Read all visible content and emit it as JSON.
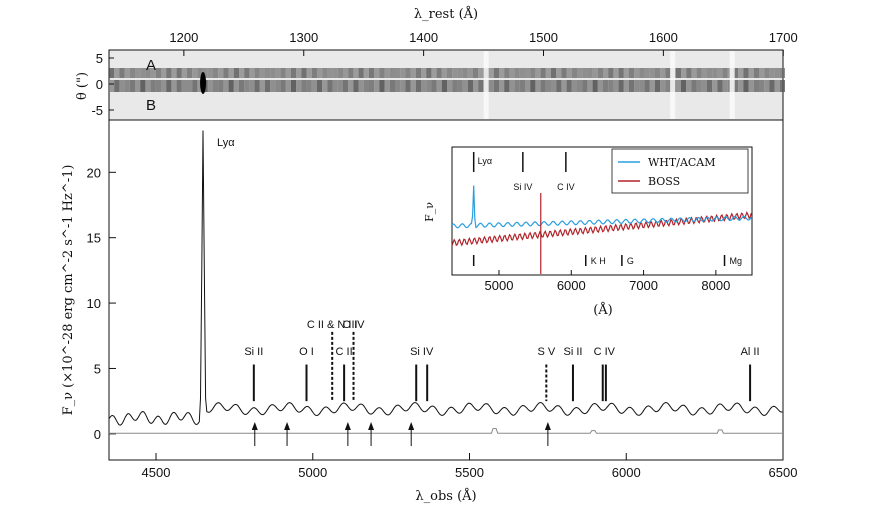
{
  "chart_data": {
    "type": "line",
    "top_axis": {
      "label": "λ_rest (Å)",
      "ticks": [
        1200,
        1300,
        1400,
        1500,
        1600,
        1700
      ],
      "range": [
        1150,
        1700
      ]
    },
    "spectrum2d": {
      "ylabel": "θ (\")",
      "yticks": [
        5,
        0,
        -5
      ],
      "ytick_labels": [
        "5",
        "0",
        "-5"
      ],
      "trace_labels": [
        "A",
        "B"
      ]
    },
    "main": {
      "xlabel": "λ_obs (Å)",
      "ylabel": "F_ν (×10^-28 erg cm^-2 s^-1 Hz^-1)",
      "xlim": [
        4350,
        6500
      ],
      "ylim": [
        -2,
        24
      ],
      "xticks": [
        4500,
        5000,
        5500,
        6000,
        6500
      ],
      "yticks": [
        0,
        5,
        10,
        15,
        20
      ],
      "lines": [
        {
          "label": "Lyα",
          "x": 4650,
          "y": 22.2,
          "style": "none"
        },
        {
          "label": "Si II",
          "x": 4812,
          "y": 5.3,
          "style": "solid"
        },
        {
          "label": "O I",
          "x": 4980,
          "y": 5.3,
          "style": "solid"
        },
        {
          "label": "C II",
          "x": 5100,
          "y": 5.3,
          "style": "solid"
        },
        {
          "label": "C II & N III",
          "x": 5062,
          "y": 7.8,
          "style": "dashed"
        },
        {
          "label": "O IV",
          "x": 5130,
          "y": 7.8,
          "style": "dashed"
        },
        {
          "label": "Si IV",
          "x": 5330,
          "y": 5.3,
          "style": "solid2",
          "x2": 5365
        },
        {
          "label": "S V",
          "x": 5745,
          "y": 5.3,
          "style": "dashed"
        },
        {
          "label": "Si II",
          "x": 5830,
          "y": 5.3,
          "style": "solid"
        },
        {
          "label": "C IV",
          "x": 5925,
          "y": 5.3,
          "style": "solid2",
          "x2": 5935
        },
        {
          "label": "Al II",
          "x": 6395,
          "y": 5.3,
          "style": "solid"
        }
      ],
      "arrows": [
        4815,
        4918,
        5112,
        5186,
        5314,
        5750
      ]
    },
    "inset": {
      "xlabel": "(Å)",
      "ylabel": "F_ν",
      "xlim": [
        4350,
        8500
      ],
      "xticks": [
        5000,
        6000,
        7000,
        8000
      ],
      "series": [
        {
          "name": "WHT/ACAM",
          "color": "#2a9ee0"
        },
        {
          "name": "BOSS",
          "color": "#b0232a"
        }
      ],
      "top_lines": [
        {
          "label": "Lyα",
          "x": 4650
        },
        {
          "label": "Si IV",
          "x": 5330
        },
        {
          "label": "C IV",
          "x": 5925
        }
      ],
      "bottom_lines": [
        {
          "label": "K H",
          "x": 6200
        },
        {
          "label": "G",
          "x": 6700
        },
        {
          "label": "Mg",
          "x": 8120
        }
      ]
    }
  }
}
